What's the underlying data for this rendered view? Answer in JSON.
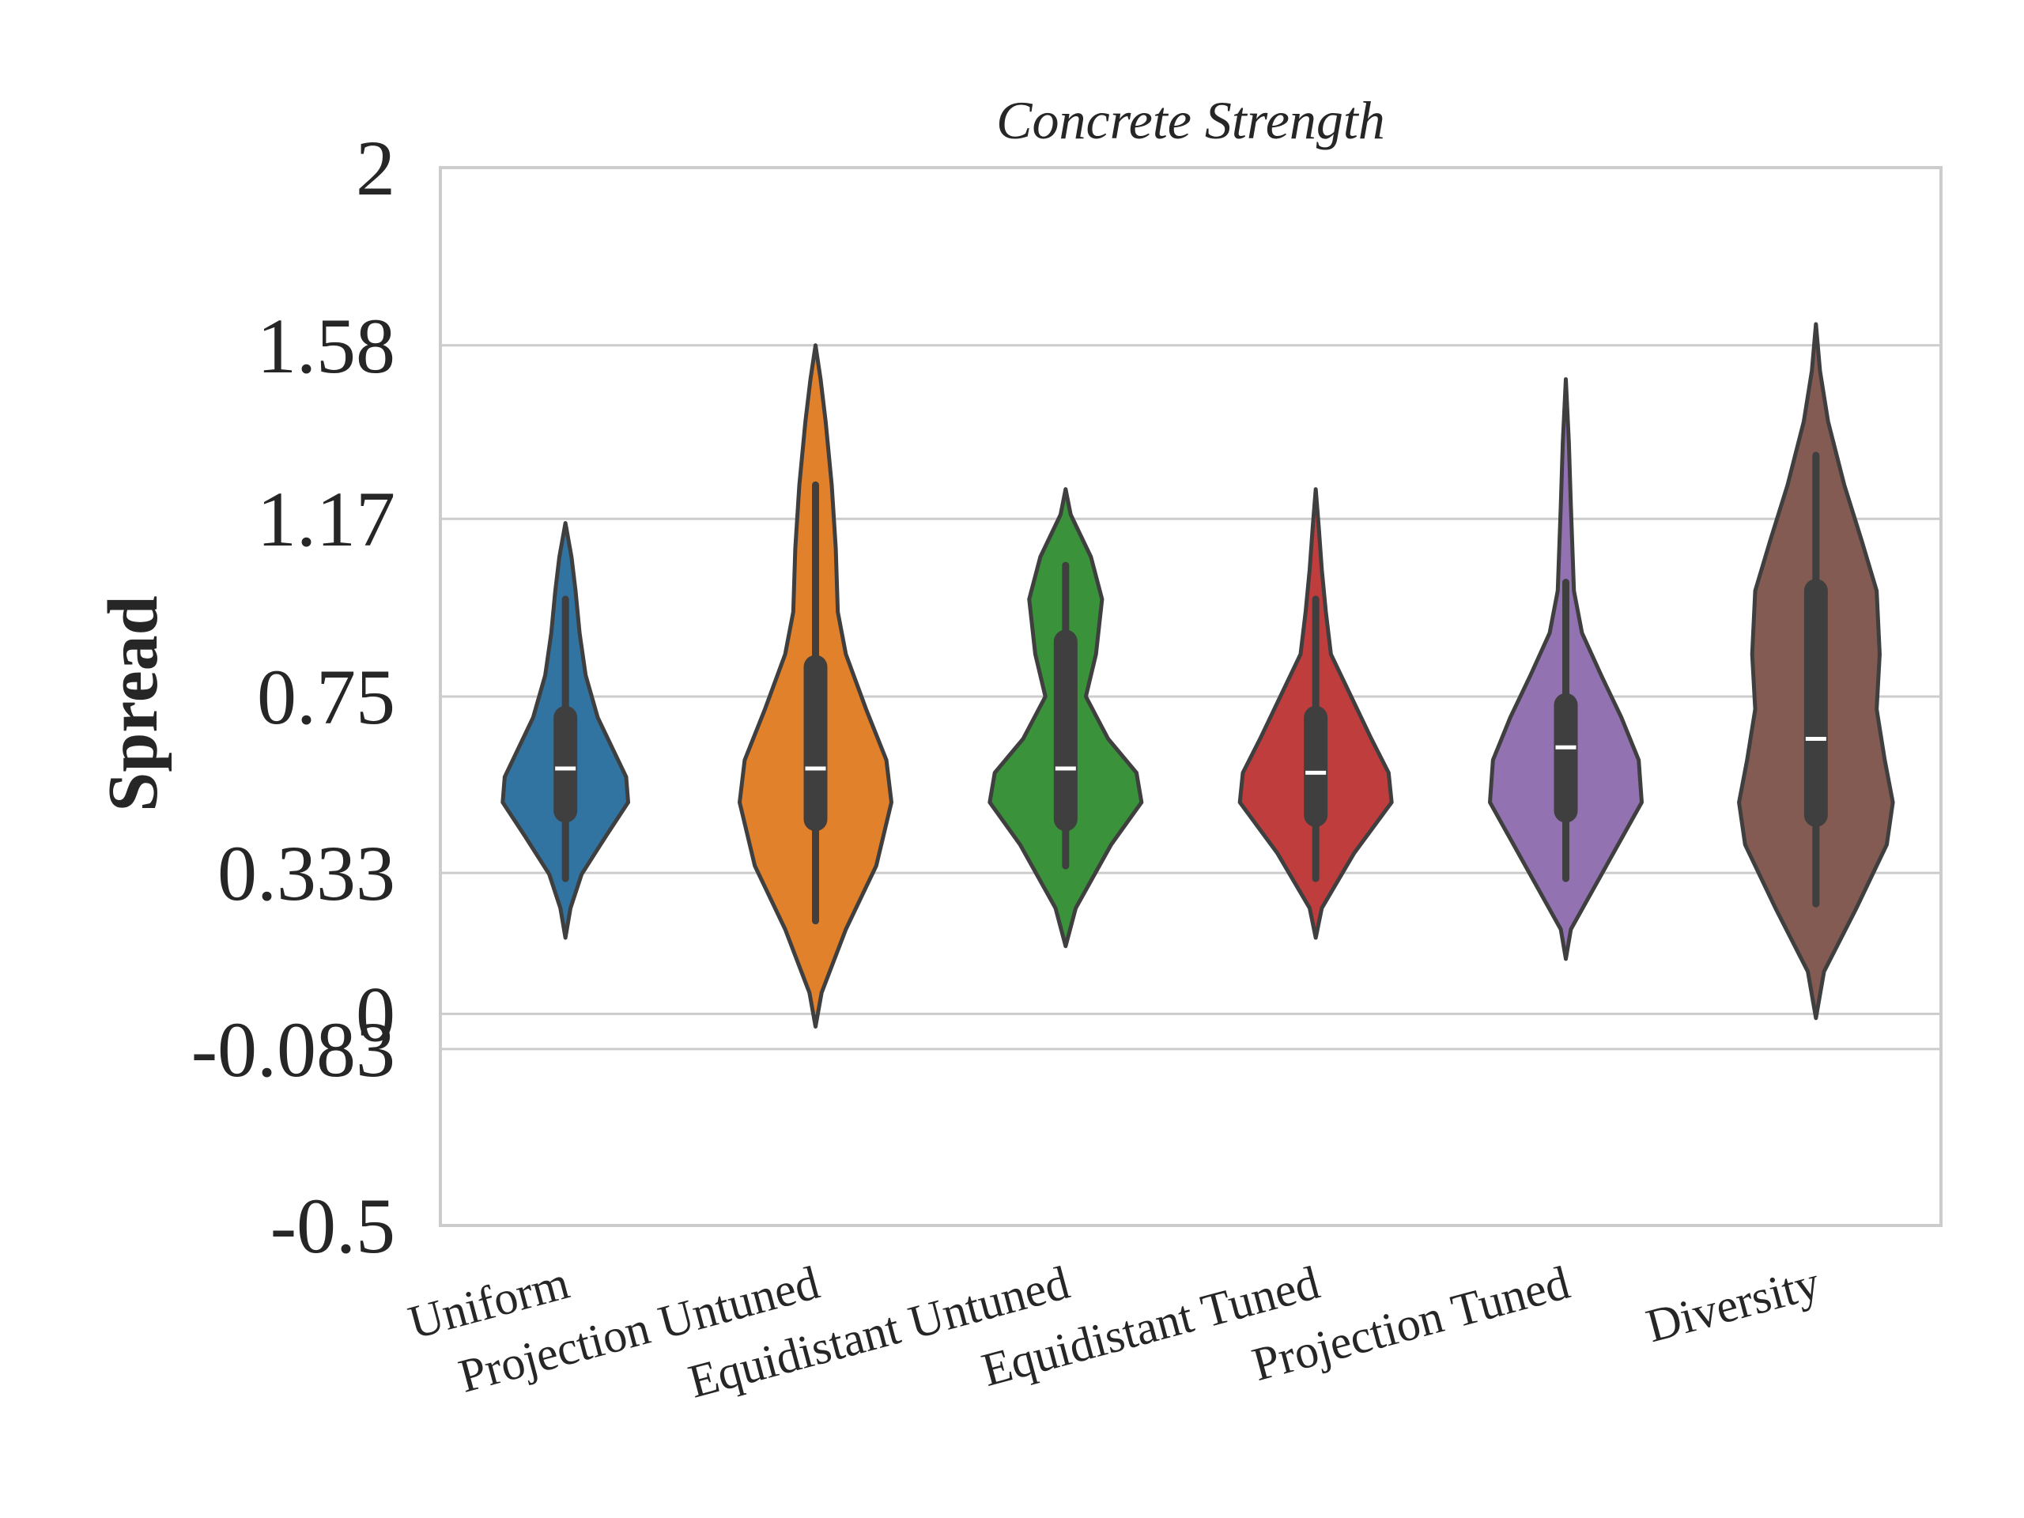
{
  "chart_data": {
    "type": "violin",
    "title": "Concrete Strength",
    "xlabel": "",
    "ylabel": "Spread",
    "ylim": [
      -0.5,
      2
    ],
    "yticks": [
      -0.5,
      -0.083,
      0,
      0.333,
      0.75,
      1.17,
      1.58,
      2
    ],
    "ytick_labels": [
      "-0.5",
      "-0.083",
      "0",
      "0.333",
      "0.75",
      "1.17",
      "1.58",
      "2"
    ],
    "grid": true,
    "categories": [
      "Uniform",
      "Projection Untuned",
      "Equidistant Untuned",
      "Equidistant Tuned",
      "Projection Tuned",
      "Diversity"
    ],
    "series": [
      {
        "color": "#3274a1",
        "median": 0.58,
        "q1": 0.48,
        "q3": 0.7,
        "whisker_low": 0.32,
        "whisker_high": 0.98,
        "density": [
          [
            0.18,
            0.0
          ],
          [
            0.25,
            0.05
          ],
          [
            0.33,
            0.16
          ],
          [
            0.42,
            0.4
          ],
          [
            0.5,
            0.62
          ],
          [
            0.56,
            0.6
          ],
          [
            0.62,
            0.48
          ],
          [
            0.7,
            0.32
          ],
          [
            0.8,
            0.2
          ],
          [
            0.9,
            0.14
          ],
          [
            1.0,
            0.1
          ],
          [
            1.08,
            0.06
          ],
          [
            1.16,
            0.0
          ]
        ]
      },
      {
        "color": "#e1812c",
        "median": 0.58,
        "q1": 0.46,
        "q3": 0.82,
        "whisker_low": 0.22,
        "whisker_high": 1.25,
        "density": [
          [
            -0.03,
            0.0
          ],
          [
            0.05,
            0.06
          ],
          [
            0.2,
            0.3
          ],
          [
            0.35,
            0.6
          ],
          [
            0.5,
            0.75
          ],
          [
            0.6,
            0.7
          ],
          [
            0.72,
            0.5
          ],
          [
            0.85,
            0.3
          ],
          [
            0.95,
            0.22
          ],
          [
            1.1,
            0.2
          ],
          [
            1.25,
            0.16
          ],
          [
            1.4,
            0.1
          ],
          [
            1.5,
            0.05
          ],
          [
            1.58,
            0.0
          ]
        ]
      },
      {
        "color": "#3a923a",
        "median": 0.58,
        "q1": 0.46,
        "q3": 0.88,
        "whisker_low": 0.35,
        "whisker_high": 1.06,
        "density": [
          [
            0.16,
            0.0
          ],
          [
            0.25,
            0.1
          ],
          [
            0.4,
            0.45
          ],
          [
            0.5,
            0.75
          ],
          [
            0.57,
            0.7
          ],
          [
            0.65,
            0.42
          ],
          [
            0.75,
            0.2
          ],
          [
            0.85,
            0.3
          ],
          [
            0.98,
            0.36
          ],
          [
            1.08,
            0.25
          ],
          [
            1.18,
            0.05
          ],
          [
            1.24,
            0.0
          ]
        ]
      },
      {
        "color": "#c03d3e",
        "median": 0.57,
        "q1": 0.47,
        "q3": 0.7,
        "whisker_low": 0.32,
        "whisker_high": 0.98,
        "density": [
          [
            0.18,
            0.0
          ],
          [
            0.25,
            0.06
          ],
          [
            0.38,
            0.38
          ],
          [
            0.5,
            0.75
          ],
          [
            0.57,
            0.72
          ],
          [
            0.65,
            0.55
          ],
          [
            0.75,
            0.35
          ],
          [
            0.85,
            0.15
          ],
          [
            0.95,
            0.1
          ],
          [
            1.05,
            0.06
          ],
          [
            1.15,
            0.03
          ],
          [
            1.24,
            0.0
          ]
        ]
      },
      {
        "color": "#9372b2",
        "median": 0.63,
        "q1": 0.48,
        "q3": 0.73,
        "whisker_low": 0.32,
        "whisker_high": 1.02,
        "density": [
          [
            0.13,
            0.0
          ],
          [
            0.2,
            0.05
          ],
          [
            0.35,
            0.4
          ],
          [
            0.5,
            0.75
          ],
          [
            0.6,
            0.72
          ],
          [
            0.7,
            0.55
          ],
          [
            0.8,
            0.35
          ],
          [
            0.9,
            0.16
          ],
          [
            1.0,
            0.08
          ],
          [
            1.2,
            0.05
          ],
          [
            1.35,
            0.03
          ],
          [
            1.5,
            0.0
          ]
        ]
      },
      {
        "color": "#845b53",
        "median": 0.65,
        "q1": 0.47,
        "q3": 1.0,
        "whisker_low": 0.26,
        "whisker_high": 1.32,
        "density": [
          [
            -0.01,
            0.0
          ],
          [
            0.1,
            0.08
          ],
          [
            0.25,
            0.4
          ],
          [
            0.4,
            0.7
          ],
          [
            0.5,
            0.76
          ],
          [
            0.6,
            0.68
          ],
          [
            0.72,
            0.6
          ],
          [
            0.85,
            0.63
          ],
          [
            1.0,
            0.6
          ],
          [
            1.12,
            0.45
          ],
          [
            1.25,
            0.28
          ],
          [
            1.4,
            0.12
          ],
          [
            1.52,
            0.04
          ],
          [
            1.63,
            0.0
          ]
        ]
      }
    ]
  }
}
